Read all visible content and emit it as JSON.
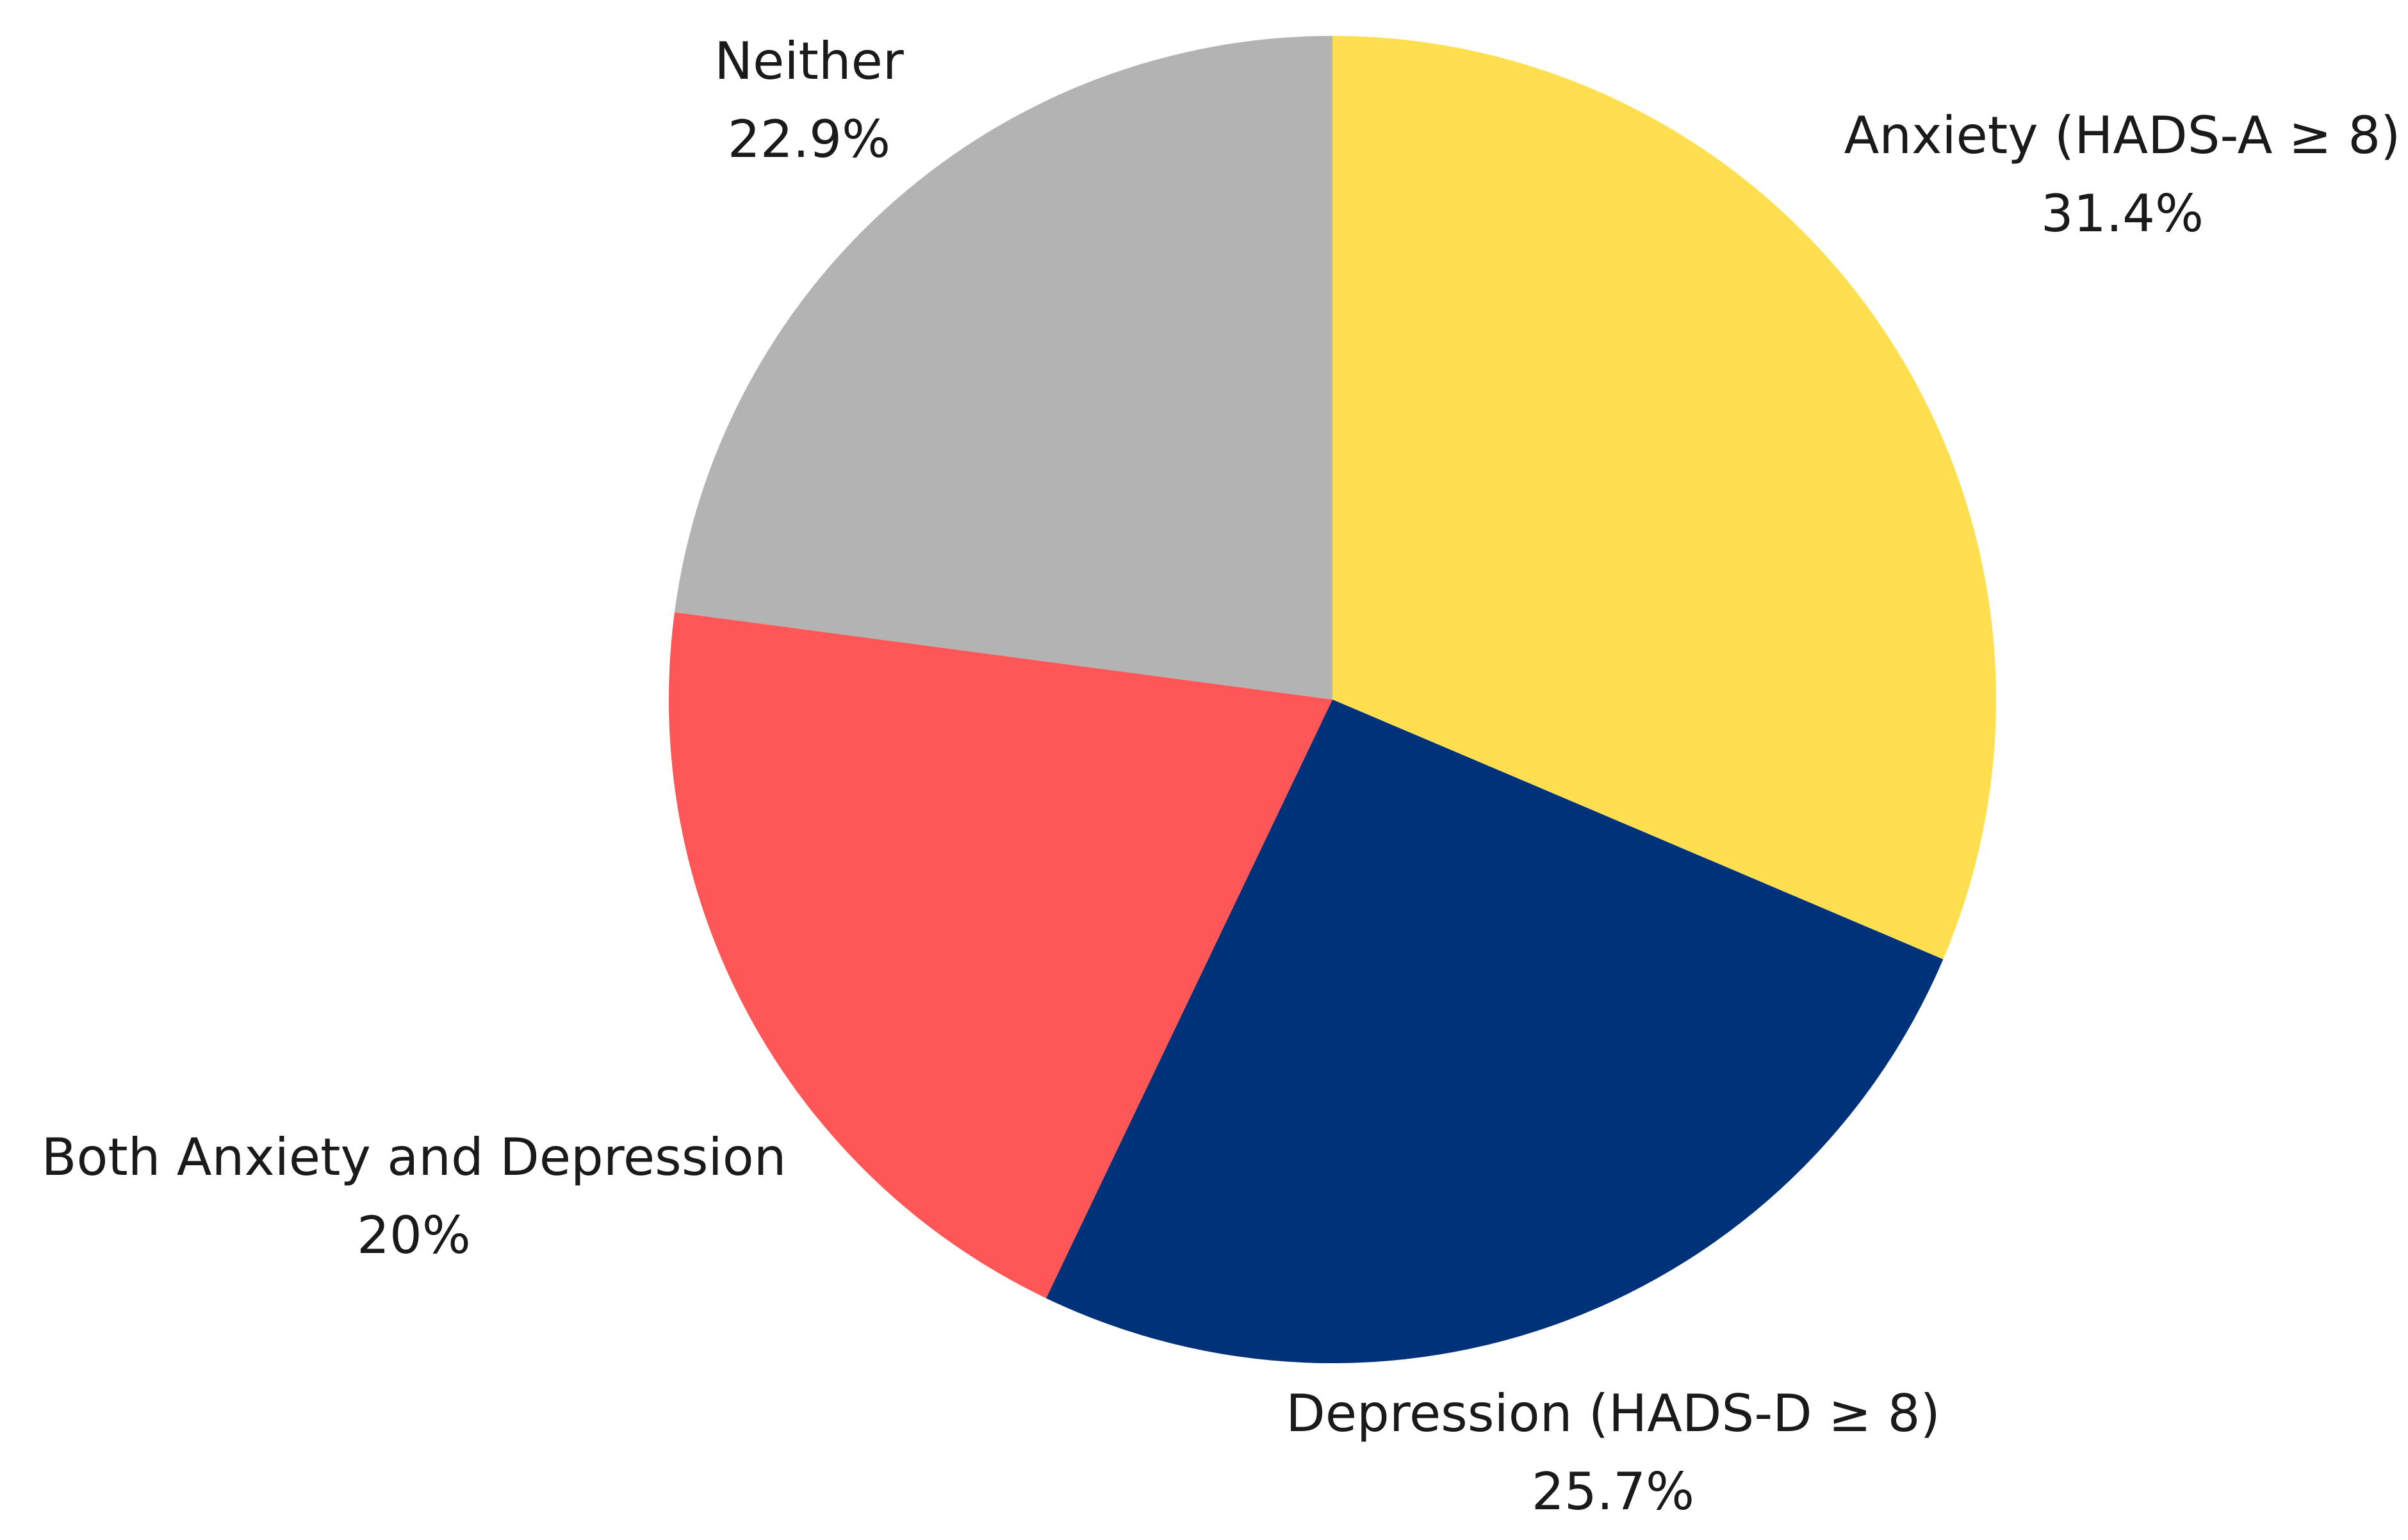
{
  "chart_data": {
    "type": "pie",
    "categories": [
      "Anxiety (HADS-A ≥ 8)",
      "Depression (HADS-D ≥ 8)",
      "Both Anxiety and Depression",
      "Neither"
    ],
    "values": [
      31.4,
      25.7,
      20,
      22.9
    ],
    "value_labels": [
      "31.4%",
      "25.7%",
      "20%",
      "22.9%"
    ],
    "colors": [
      "#ffdf4f",
      "#00327a",
      "#ff5757",
      "#b3b3b3"
    ]
  }
}
